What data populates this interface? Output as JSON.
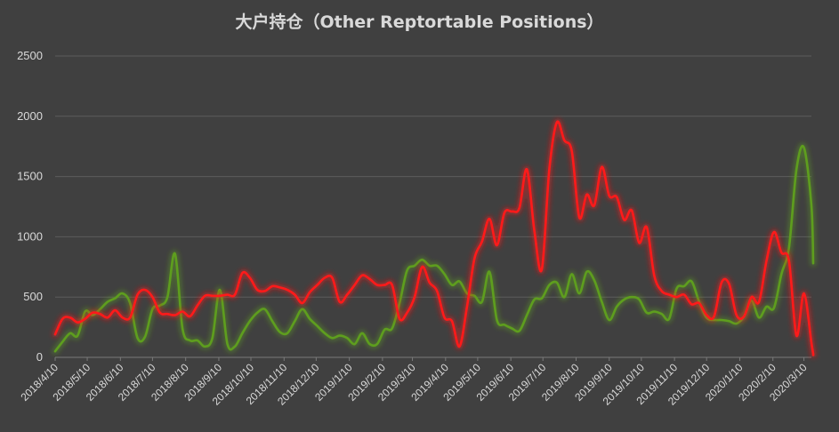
{
  "chart_data": {
    "type": "line",
    "title": "大户持仓（Other Reptortable Positions）",
    "xlabel": "",
    "ylabel": "",
    "ylim": [
      0,
      2500
    ],
    "yticks": [
      0,
      500,
      1000,
      1500,
      2000,
      2500
    ],
    "grid": true,
    "legend": "none",
    "x_tick_labels": [
      "2018/4/10",
      "2018/5/10",
      "2018/6/10",
      "2018/7/10",
      "2018/8/10",
      "2018/9/10",
      "2018/10/10",
      "2018/11/10",
      "2018/12/10",
      "2019/1/10",
      "2019/2/10",
      "2019/3/10",
      "2019/4/10",
      "2019/5/10",
      "2019/6/10",
      "2019/7/10",
      "2019/8/10",
      "2019/9/10",
      "2019/10/10",
      "2019/11/10",
      "2019/12/10",
      "2020/1/10",
      "2020/2/10",
      "2020/3/10"
    ],
    "x_start": "2018/4/10",
    "x_end": "2020/3/17",
    "series": [
      {
        "color": "#ff1a1a",
        "style": "glow",
        "points": [
          [
            "2018/4/10",
            190
          ],
          [
            "2018/4/17",
            320
          ],
          [
            "2018/4/24",
            330
          ],
          [
            "2018/5/1",
            290
          ],
          [
            "2018/5/8",
            320
          ],
          [
            "2018/5/15",
            370
          ],
          [
            "2018/5/22",
            360
          ],
          [
            "2018/5/29",
            330
          ],
          [
            "2018/6/5",
            390
          ],
          [
            "2018/6/12",
            330
          ],
          [
            "2018/6/19",
            330
          ],
          [
            "2018/6/26",
            520
          ],
          [
            "2018/7/3",
            560
          ],
          [
            "2018/7/10",
            500
          ],
          [
            "2018/7/17",
            370
          ],
          [
            "2018/7/24",
            360
          ],
          [
            "2018/7/31",
            350
          ],
          [
            "2018/8/7",
            380
          ],
          [
            "2018/8/14",
            340
          ],
          [
            "2018/8/21",
            430
          ],
          [
            "2018/8/28",
            510
          ],
          [
            "2018/9/4",
            510
          ],
          [
            "2018/9/11",
            510
          ],
          [
            "2018/9/18",
            520
          ],
          [
            "2018/9/25",
            520
          ],
          [
            "2018/10/2",
            700
          ],
          [
            "2018/10/9",
            660
          ],
          [
            "2018/10/16",
            560
          ],
          [
            "2018/10/23",
            550
          ],
          [
            "2018/10/30",
            590
          ],
          [
            "2018/11/6",
            580
          ],
          [
            "2018/11/13",
            560
          ],
          [
            "2018/11/20",
            520
          ],
          [
            "2018/11/27",
            450
          ],
          [
            "2018/12/4",
            540
          ],
          [
            "2018/12/11",
            600
          ],
          [
            "2018/12/18",
            660
          ],
          [
            "2018/12/25",
            660
          ],
          [
            "2019/1/1",
            460
          ],
          [
            "2019/1/8",
            520
          ],
          [
            "2019/1/15",
            600
          ],
          [
            "2019/1/22",
            680
          ],
          [
            "2019/1/29",
            650
          ],
          [
            "2019/2/5",
            600
          ],
          [
            "2019/2/12",
            600
          ],
          [
            "2019/2/19",
            600
          ],
          [
            "2019/2/26",
            320
          ],
          [
            "2019/3/5",
            370
          ],
          [
            "2019/3/12",
            500
          ],
          [
            "2019/3/19",
            750
          ],
          [
            "2019/3/26",
            620
          ],
          [
            "2019/4/2",
            550
          ],
          [
            "2019/4/9",
            330
          ],
          [
            "2019/4/16",
            300
          ],
          [
            "2019/4/23",
            90
          ],
          [
            "2019/4/30",
            420
          ],
          [
            "2019/5/7",
            820
          ],
          [
            "2019/5/14",
            960
          ],
          [
            "2019/5/21",
            1150
          ],
          [
            "2019/5/28",
            930
          ],
          [
            "2019/6/4",
            1200
          ],
          [
            "2019/6/11",
            1210
          ],
          [
            "2019/6/18",
            1240
          ],
          [
            "2019/6/25",
            1560
          ],
          [
            "2019/7/2",
            1050
          ],
          [
            "2019/7/9",
            730
          ],
          [
            "2019/7/16",
            1560
          ],
          [
            "2019/7/23",
            1950
          ],
          [
            "2019/7/30",
            1800
          ],
          [
            "2019/8/6",
            1710
          ],
          [
            "2019/8/13",
            1160
          ],
          [
            "2019/8/20",
            1350
          ],
          [
            "2019/8/27",
            1260
          ],
          [
            "2019/9/3",
            1580
          ],
          [
            "2019/9/10",
            1340
          ],
          [
            "2019/9/17",
            1330
          ],
          [
            "2019/9/24",
            1140
          ],
          [
            "2019/10/1",
            1220
          ],
          [
            "2019/10/8",
            950
          ],
          [
            "2019/10/15",
            1080
          ],
          [
            "2019/10/22",
            680
          ],
          [
            "2019/10/29",
            550
          ],
          [
            "2019/11/5",
            520
          ],
          [
            "2019/11/12",
            500
          ],
          [
            "2019/11/19",
            520
          ],
          [
            "2019/11/26",
            440
          ],
          [
            "2019/12/3",
            450
          ],
          [
            "2019/12/10",
            350
          ],
          [
            "2019/12/17",
            340
          ],
          [
            "2019/12/24",
            620
          ],
          [
            "2019/12/31",
            610
          ],
          [
            "2020/1/7",
            350
          ],
          [
            "2020/1/14",
            340
          ],
          [
            "2020/1/21",
            500
          ],
          [
            "2020/1/28",
            460
          ],
          [
            "2020/2/4",
            800
          ],
          [
            "2020/2/11",
            1040
          ],
          [
            "2020/2/18",
            870
          ],
          [
            "2020/2/25",
            800
          ],
          [
            "2020/3/3",
            180
          ],
          [
            "2020/3/10",
            530
          ],
          [
            "2020/3/17",
            120
          ],
          [
            "2020/3/24",
            30
          ],
          [
            "2020/3/31",
            20
          ],
          [
            "2020/4/7",
            20
          ]
        ]
      },
      {
        "color": "#5e9e1e",
        "style": "glow",
        "points": [
          [
            "2018/4/10",
            50
          ],
          [
            "2018/4/17",
            130
          ],
          [
            "2018/4/24",
            200
          ],
          [
            "2018/5/1",
            180
          ],
          [
            "2018/5/8",
            380
          ],
          [
            "2018/5/15",
            350
          ],
          [
            "2018/5/22",
            400
          ],
          [
            "2018/5/29",
            460
          ],
          [
            "2018/6/5",
            490
          ],
          [
            "2018/6/12",
            530
          ],
          [
            "2018/6/19",
            450
          ],
          [
            "2018/6/26",
            160
          ],
          [
            "2018/7/3",
            170
          ],
          [
            "2018/7/10",
            400
          ],
          [
            "2018/7/17",
            430
          ],
          [
            "2018/7/24",
            500
          ],
          [
            "2018/7/31",
            860
          ],
          [
            "2018/8/7",
            240
          ],
          [
            "2018/8/14",
            140
          ],
          [
            "2018/8/21",
            140
          ],
          [
            "2018/8/28",
            90
          ],
          [
            "2018/9/4",
            160
          ],
          [
            "2018/9/11",
            560
          ],
          [
            "2018/9/18",
            110
          ],
          [
            "2018/9/25",
            90
          ],
          [
            "2018/10/2",
            200
          ],
          [
            "2018/10/9",
            300
          ],
          [
            "2018/10/16",
            370
          ],
          [
            "2018/10/23",
            400
          ],
          [
            "2018/10/30",
            300
          ],
          [
            "2018/11/6",
            210
          ],
          [
            "2018/11/13",
            200
          ],
          [
            "2018/11/20",
            300
          ],
          [
            "2018/11/27",
            400
          ],
          [
            "2018/12/4",
            320
          ],
          [
            "2018/12/11",
            260
          ],
          [
            "2018/12/18",
            200
          ],
          [
            "2018/12/25",
            160
          ],
          [
            "2019/1/1",
            180
          ],
          [
            "2019/1/8",
            160
          ],
          [
            "2019/1/15",
            110
          ],
          [
            "2019/1/22",
            200
          ],
          [
            "2019/1/29",
            110
          ],
          [
            "2019/2/5",
            110
          ],
          [
            "2019/2/12",
            230
          ],
          [
            "2019/2/19",
            240
          ],
          [
            "2019/2/26",
            450
          ],
          [
            "2019/3/5",
            720
          ],
          [
            "2019/3/12",
            760
          ],
          [
            "2019/3/19",
            810
          ],
          [
            "2019/3/26",
            760
          ],
          [
            "2019/4/2",
            760
          ],
          [
            "2019/4/9",
            690
          ],
          [
            "2019/4/16",
            600
          ],
          [
            "2019/4/23",
            630
          ],
          [
            "2019/4/30",
            530
          ],
          [
            "2019/5/7",
            510
          ],
          [
            "2019/5/14",
            460
          ],
          [
            "2019/5/21",
            710
          ],
          [
            "2019/5/28",
            310
          ],
          [
            "2019/6/4",
            270
          ],
          [
            "2019/6/11",
            240
          ],
          [
            "2019/6/18",
            220
          ],
          [
            "2019/6/25",
            350
          ],
          [
            "2019/7/2",
            480
          ],
          [
            "2019/7/9",
            490
          ],
          [
            "2019/7/16",
            600
          ],
          [
            "2019/7/23",
            620
          ],
          [
            "2019/7/30",
            500
          ],
          [
            "2019/8/6",
            690
          ],
          [
            "2019/8/13",
            530
          ],
          [
            "2019/8/20",
            710
          ],
          [
            "2019/8/27",
            640
          ],
          [
            "2019/9/3",
            460
          ],
          [
            "2019/9/10",
            310
          ],
          [
            "2019/9/17",
            420
          ],
          [
            "2019/9/24",
            480
          ],
          [
            "2019/10/1",
            500
          ],
          [
            "2019/10/8",
            480
          ],
          [
            "2019/10/15",
            370
          ],
          [
            "2019/10/22",
            380
          ],
          [
            "2019/10/29",
            360
          ],
          [
            "2019/11/5",
            320
          ],
          [
            "2019/11/12",
            570
          ],
          [
            "2019/11/19",
            590
          ],
          [
            "2019/11/26",
            630
          ],
          [
            "2019/12/3",
            460
          ],
          [
            "2019/12/10",
            330
          ],
          [
            "2019/12/17",
            310
          ],
          [
            "2019/12/24",
            310
          ],
          [
            "2019/12/31",
            300
          ],
          [
            "2020/1/7",
            280
          ],
          [
            "2020/1/14",
            340
          ],
          [
            "2020/1/21",
            470
          ],
          [
            "2020/1/28",
            330
          ],
          [
            "2020/2/4",
            420
          ],
          [
            "2020/2/11",
            410
          ],
          [
            "2020/2/18",
            690
          ],
          [
            "2020/2/25",
            910
          ],
          [
            "2020/3/3",
            1560
          ],
          [
            "2020/3/10",
            1740
          ],
          [
            "2020/3/17",
            1260
          ],
          [
            "2020/3/24",
            780
          ]
        ]
      }
    ]
  }
}
